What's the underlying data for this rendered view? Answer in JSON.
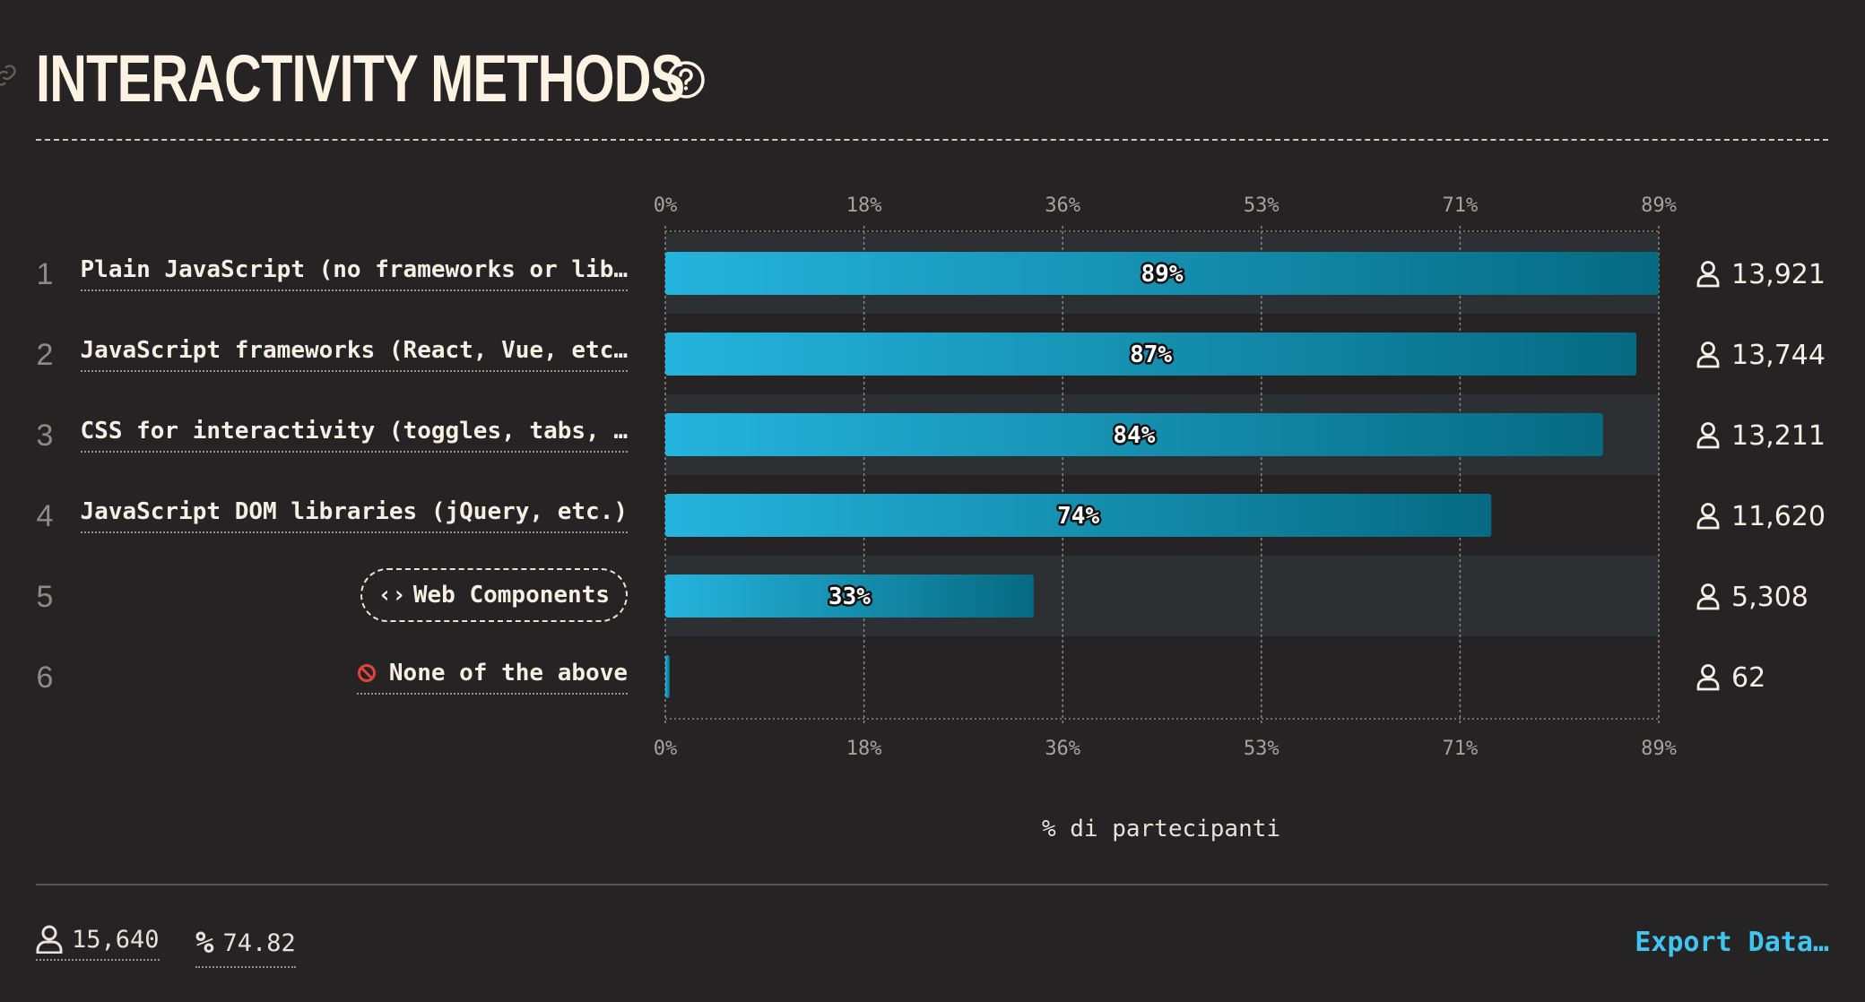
{
  "header": {
    "title": "INTERACTIVITY METHODS"
  },
  "chart_data": {
    "type": "bar",
    "orientation": "horizontal",
    "title": "INTERACTIVITY METHODS",
    "xlabel": "% di partecipanti",
    "xlim": [
      0,
      89
    ],
    "x_ticks": [
      "0%",
      "18%",
      "36%",
      "53%",
      "71%",
      "89%"
    ],
    "categories": [
      "Plain JavaScript (no frameworks or lib…",
      "JavaScript frameworks (React, Vue, etc…",
      "CSS for interactivity (toggles, tabs, …",
      "JavaScript DOM libraries (jQuery, etc.)",
      "Web Components",
      "None of the above"
    ],
    "ranks": [
      "1",
      "2",
      "3",
      "4",
      "5",
      "6"
    ],
    "values": [
      89,
      87,
      84,
      74,
      33,
      0.4
    ],
    "value_labels": [
      "89%",
      "87%",
      "84%",
      "74%",
      "33%",
      ""
    ],
    "counts": [
      "13,921",
      "13,744",
      "13,211",
      "11,620",
      "5,308",
      "62"
    ],
    "bar_colors": [
      "#25b4dd",
      "#066a82"
    ]
  },
  "footer": {
    "respondents": "15,640",
    "percentage": "74.82",
    "export_label": "Export Data…"
  }
}
